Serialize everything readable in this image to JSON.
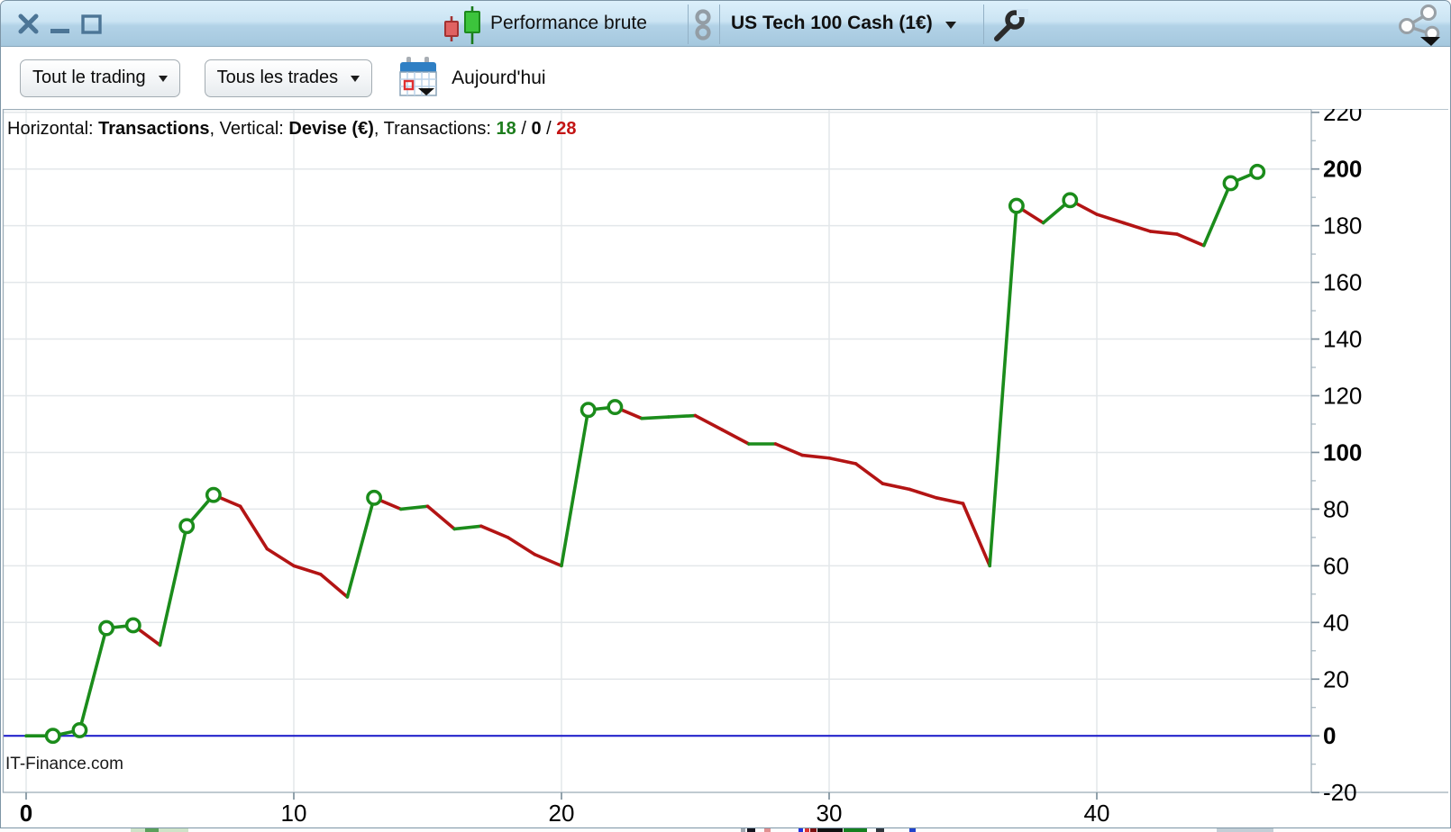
{
  "title_bar": {
    "window_controls": {
      "close": "close",
      "minimize": "minimize",
      "maximize": "maximize"
    },
    "app_icon": "candlestick-icon",
    "performance_label": "Performance brute",
    "link_icon": "chain-link-icon",
    "instrument_selector": {
      "label": "US Tech 100 Cash (1€)",
      "dropdown": "caret-down-icon"
    },
    "wrench_icon": "wrench-icon",
    "share_icon": "share-icon"
  },
  "toolbar": {
    "trading_scope_button": "Tout le trading",
    "trades_filter_button": "Tous les trades",
    "calendar_icon": "calendar-icon",
    "period_label": "Aujourd'hui"
  },
  "chart_header": {
    "horizontal_label": "Horizontal: ",
    "horizontal_value": "Transactions",
    "separator1": ", ",
    "vertical_label": "Vertical: ",
    "vertical_value": "Devise (€)",
    "separator2": ", ",
    "transactions_label": "Transactions: ",
    "wins": "18",
    "slash1": " / ",
    "neutral": "0",
    "slash2": " / ",
    "losses": "28"
  },
  "watermark": "IT-Finance.com",
  "chart_data": {
    "type": "line",
    "title": "Performance brute",
    "xlabel": "Transactions",
    "ylabel": "Devise (€)",
    "x": [
      0,
      1,
      2,
      3,
      4,
      5,
      6,
      7,
      8,
      9,
      10,
      11,
      12,
      13,
      14,
      15,
      16,
      17,
      18,
      19,
      20,
      21,
      22,
      23,
      24,
      25,
      26,
      27,
      28,
      29,
      30,
      31,
      32,
      33,
      34,
      35,
      36,
      37,
      38,
      39,
      40,
      41,
      42,
      43,
      44,
      45,
      46
    ],
    "values": [
      0,
      0,
      2,
      38,
      39,
      32,
      74,
      85,
      81,
      66,
      60,
      57,
      49,
      84,
      80,
      81,
      73,
      74,
      70,
      64,
      60,
      115,
      116,
      112,
      112.5,
      113,
      108,
      103,
      103,
      99,
      98,
      96,
      89,
      87,
      84,
      82,
      60,
      187,
      181,
      189,
      184,
      181,
      178,
      177,
      173,
      195,
      199
    ],
    "equity_high_markers": [
      1,
      2,
      3,
      4,
      6,
      7,
      13,
      21,
      22,
      37,
      39,
      45,
      46
    ],
    "segment_color_rule": "green when equity rises or is flat, red when it falls",
    "win_loss_stats": {
      "wins": 18,
      "neutral": 0,
      "losses": 28
    },
    "x_ticks": [
      0,
      10,
      20,
      30,
      40
    ],
    "y_ticks": [
      220,
      200,
      180,
      160,
      140,
      120,
      100,
      80,
      60,
      40,
      20,
      0,
      -20
    ],
    "y_minor_ticks": [
      210,
      190,
      170,
      150,
      130,
      110,
      90,
      70,
      50,
      30,
      10,
      -10
    ],
    "bold_y_ticks": [
      200,
      100,
      0
    ],
    "bold_x_ticks": [
      0
    ],
    "ylim": [
      -20,
      222
    ],
    "xlim": [
      0,
      48.3
    ],
    "grid": true,
    "legend": "none",
    "colors": {
      "win": "#1b8c1b",
      "loss": "#b31414",
      "zero_line": "#2424cc",
      "grid": "#e3e7ea",
      "axis_text": "#000000"
    }
  },
  "theme": {
    "titlebar_top": "#dcf0fb",
    "titlebar_bottom": "#a5c8de",
    "window_border": "#7d95a6",
    "icon_blue": "#4c7596"
  }
}
